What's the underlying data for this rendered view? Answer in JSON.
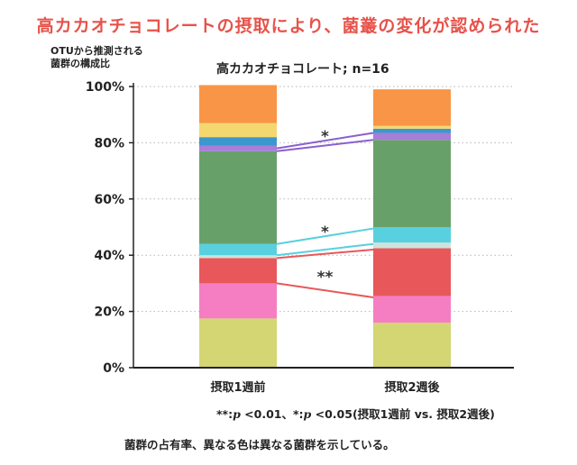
{
  "headline": "高カカオチョコレートの摂取により、菌叢の変化が認められた",
  "footnote": {
    "pre": "**:",
    "p1": "p",
    "mid": " <0.01、*:",
    "p2": "p",
    "post": " <0.05(摂取1週前 vs. 摂取2週後)"
  },
  "caption": "菌群の占有率、異なる色は異なる菌群を示している。",
  "chart_data": {
    "type": "bar",
    "stacked": true,
    "title": "高カカオチョコレート; n=16",
    "ylabel": "OTUから推測される菌群の構成比",
    "ylabel_lines": [
      "OTUから推測される",
      "菌群の構成比"
    ],
    "ylim": [
      0,
      100
    ],
    "yticks": [
      0,
      20,
      40,
      60,
      80,
      100
    ],
    "ytick_labels": [
      "0%",
      "20%",
      "40%",
      "60%",
      "80%",
      "100%"
    ],
    "grid": "horizontal-dotted",
    "categories": [
      "摂取1週前",
      "摂取2週後"
    ],
    "series": [
      {
        "color": "#d3d672",
        "values": [
          17.5,
          16
        ]
      },
      {
        "color": "#f57ec3",
        "values": [
          12.5,
          9.5
        ]
      },
      {
        "color": "#e8585a",
        "values": [
          9,
          17
        ]
      },
      {
        "color": "#cce4dc",
        "values": [
          1,
          2
        ]
      },
      {
        "color": "#59d0df",
        "values": [
          4,
          5.5
        ]
      },
      {
        "color": "#68a06a",
        "values": [
          33,
          31
        ]
      },
      {
        "color": "#a77ed8",
        "values": [
          2,
          2.5
        ]
      },
      {
        "color": "#3b98cf",
        "values": [
          3,
          1.5
        ]
      },
      {
        "color": "#f5d770",
        "values": [
          5,
          1
        ]
      },
      {
        "color": "#f99546",
        "values": [
          13.5,
          13
        ]
      }
    ],
    "connectors": [
      {
        "y": [
          30,
          25
        ],
        "color": "#e8585a"
      },
      {
        "y": [
          39,
          42
        ],
        "color": "#e8585a"
      },
      {
        "y": [
          40,
          44
        ],
        "color": "#59d0df"
      },
      {
        "y": [
          44,
          49.5
        ],
        "color": "#59d0df"
      },
      {
        "y": [
          77,
          81
        ],
        "color": "#8a5fd0"
      },
      {
        "y": [
          78,
          83.5
        ],
        "color": "#8a5fd0"
      }
    ],
    "significance": [
      {
        "label": "**",
        "y": 33
      },
      {
        "label": "*",
        "y": 49
      },
      {
        "label": "*",
        "y": 83
      }
    ]
  }
}
